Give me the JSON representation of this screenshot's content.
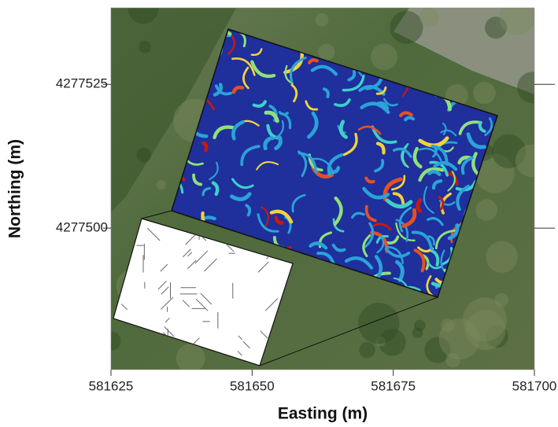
{
  "chart_data": {
    "type": "map",
    "xlabel": "Easting (m)",
    "ylabel": "Northing (m)",
    "xlim": [
      581625,
      581700
    ],
    "xticks": [
      581625,
      581650,
      581675,
      581700
    ],
    "ylim": [
      4277475.4,
      4277538.3
    ],
    "yticks": [
      4277500,
      4277525
    ]
  }
}
